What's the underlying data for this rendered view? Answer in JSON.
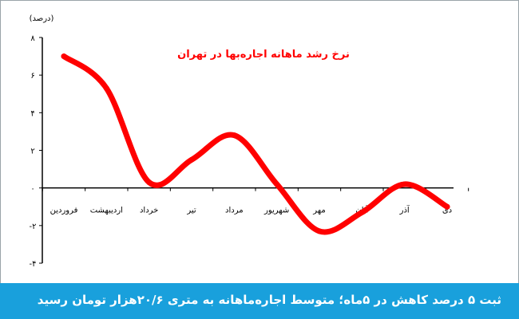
{
  "chart_data": {
    "type": "line",
    "title": "نرخ رشد ماهانه اجاره‌بها در تهران",
    "ylabel": "(درصد)",
    "xlabel": "",
    "categories": [
      "فروردین",
      "اردیبهشت",
      "خرداد",
      "تیر",
      "مرداد",
      "شهریور",
      "مهر",
      "آبان",
      "آذر",
      "دی"
    ],
    "values": [
      7.0,
      5.3,
      0.3,
      1.5,
      2.8,
      0.2,
      -2.3,
      -1.3,
      0.2,
      -1.0
    ],
    "y_tick_labels": [
      "۸",
      "۶",
      "۴",
      "۲",
      "۰",
      "-۲",
      "-۴"
    ],
    "y_ticks": [
      8,
      6,
      4,
      2,
      0,
      -2,
      -4
    ],
    "ylim": [
      -4,
      8
    ],
    "grid": false,
    "legend": "none",
    "line_color": "#ff0000",
    "title_color": "#ff0000"
  },
  "caption": "ثبت ۵ درصد کاهش در ۵ماه؛ متوسط اجاره‌ماهانه به متری ۲۰/۶هزار تومان رسید",
  "colors": {
    "caption_bg": "#19a0dc",
    "caption_text": "#ffffff",
    "axis": "#000000"
  }
}
